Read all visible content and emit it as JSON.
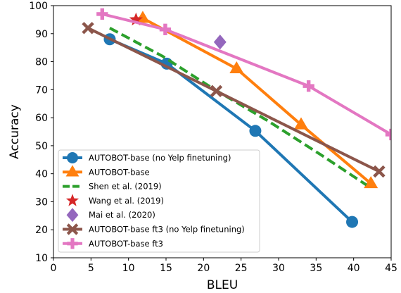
{
  "chart_data": {
    "type": "line",
    "xlabel": "BLEU",
    "ylabel": "Accuracy",
    "xlim": [
      0,
      45
    ],
    "ylim": [
      10,
      100
    ],
    "xticks": [
      "0",
      "5",
      "10",
      "15",
      "20",
      "25",
      "30",
      "35",
      "40",
      "45"
    ],
    "yticks": [
      "10",
      "20",
      "30",
      "40",
      "50",
      "60",
      "70",
      "80",
      "90",
      "100"
    ],
    "grid": false,
    "legend_position": "lower-left",
    "series": [
      {
        "name": "AUTOBOT-base (no Yelp finetuning)",
        "color": "#1f77b4",
        "marker": "circle",
        "line": "solid",
        "points": [
          [
            7.5,
            88
          ],
          [
            15.1,
            79.3
          ],
          [
            26.9,
            55.3
          ],
          [
            39.8,
            22.8
          ]
        ]
      },
      {
        "name": "AUTOBOT-base",
        "color": "#ff7f0e",
        "marker": "triangle",
        "line": "solid",
        "points": [
          [
            11.9,
            95.5
          ],
          [
            24.4,
            77.5
          ],
          [
            33,
            57.5
          ],
          [
            42.3,
            36.5
          ]
        ]
      },
      {
        "name": "Shen et al. (2019)",
        "color": "#2ca02c",
        "marker": "none",
        "line": "dashed",
        "points": [
          [
            7.5,
            92
          ],
          [
            14.5,
            82
          ],
          [
            21.5,
            70
          ],
          [
            28.5,
            59
          ],
          [
            35.5,
            47
          ],
          [
            41.7,
            36
          ]
        ]
      },
      {
        "name": "Wang et al. (2019)",
        "color": "#d62728",
        "marker": "star",
        "line": "none",
        "points": [
          [
            11,
            95
          ]
        ]
      },
      {
        "name": "Mai et al. (2020)",
        "color": "#9467bd",
        "marker": "diamond",
        "line": "none",
        "points": [
          [
            22.2,
            87
          ]
        ]
      },
      {
        "name": "AUTOBOT-base ft3 (no Yelp finetuning)",
        "color": "#8c564b",
        "marker": "x",
        "line": "solid",
        "points": [
          [
            4.6,
            92
          ],
          [
            21.7,
            69.5
          ],
          [
            43.4,
            40.8
          ]
        ]
      },
      {
        "name": "AUTOBOT-base ft3",
        "color": "#e377c2",
        "marker": "plus",
        "line": "solid",
        "points": [
          [
            6.5,
            97
          ],
          [
            14.9,
            91.5
          ],
          [
            34,
            71.3
          ],
          [
            45,
            54
          ]
        ]
      }
    ]
  }
}
